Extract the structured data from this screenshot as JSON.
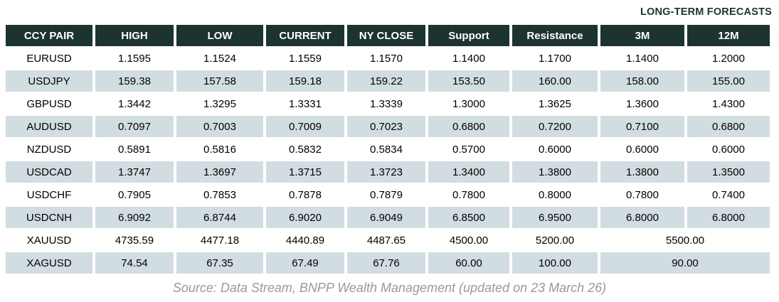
{
  "forecast_banner": {
    "label": "LONG-TERM FORECASTS"
  },
  "table": {
    "columns": [
      {
        "key": "pair",
        "label": "CCY PAIR"
      },
      {
        "key": "high",
        "label": "HIGH"
      },
      {
        "key": "low",
        "label": "LOW"
      },
      {
        "key": "current",
        "label": "CURRENT"
      },
      {
        "key": "ny_close",
        "label": "NY CLOSE"
      },
      {
        "key": "support",
        "label": "Support"
      },
      {
        "key": "resistance",
        "label": "Resistance"
      },
      {
        "key": "m3",
        "label": "3M"
      },
      {
        "key": "m12",
        "label": "12M"
      }
    ],
    "rows": [
      {
        "pair": "EURUSD",
        "high": "1.1595",
        "low": "1.1524",
        "current": "1.1559",
        "ny_close": "1.1570",
        "support": "1.1400",
        "resistance": "1.1700",
        "m3": "1.1400",
        "m12": "1.2000"
      },
      {
        "pair": "USDJPY",
        "high": "159.38",
        "low": "157.58",
        "current": "159.18",
        "ny_close": "159.22",
        "support": "153.50",
        "resistance": "160.00",
        "m3": "158.00",
        "m12": "155.00"
      },
      {
        "pair": "GBPUSD",
        "high": "1.3442",
        "low": "1.3295",
        "current": "1.3331",
        "ny_close": "1.3339",
        "support": "1.3000",
        "resistance": "1.3625",
        "m3": "1.3600",
        "m12": "1.4300"
      },
      {
        "pair": "AUDUSD",
        "high": "0.7097",
        "low": "0.7003",
        "current": "0.7009",
        "ny_close": "0.7023",
        "support": "0.6800",
        "resistance": "0.7200",
        "m3": "0.7100",
        "m12": "0.6800"
      },
      {
        "pair": "NZDUSD",
        "high": "0.5891",
        "low": "0.5816",
        "current": "0.5832",
        "ny_close": "0.5834",
        "support": "0.5700",
        "resistance": "0.6000",
        "m3": "0.6000",
        "m12": "0.6000"
      },
      {
        "pair": "USDCAD",
        "high": "1.3747",
        "low": "1.3697",
        "current": "1.3715",
        "ny_close": "1.3723",
        "support": "1.3400",
        "resistance": "1.3800",
        "m3": "1.3800",
        "m12": "1.3500"
      },
      {
        "pair": "USDCHF",
        "high": "0.7905",
        "low": "0.7853",
        "current": "0.7878",
        "ny_close": "0.7879",
        "support": "0.7800",
        "resistance": "0.8000",
        "m3": "0.7800",
        "m12": "0.7400"
      },
      {
        "pair": "USDCNH",
        "high": "6.9092",
        "low": "6.8744",
        "current": "6.9020",
        "ny_close": "6.9049",
        "support": "6.8500",
        "resistance": "6.9500",
        "m3": "6.8000",
        "m12": "6.8000"
      },
      {
        "pair": "XAUUSD",
        "high": "4735.59",
        "low": "4477.18",
        "current": "4440.89",
        "ny_close": "4487.65",
        "support": "4500.00",
        "resistance": "5200.00",
        "long_term": "5500.00"
      },
      {
        "pair": "XAGUSD",
        "high": "74.54",
        "low": "67.35",
        "current": "67.49",
        "ny_close": "67.76",
        "support": "60.00",
        "resistance": "100.00",
        "long_term": "90.00"
      }
    ]
  },
  "source_note": "Source: Data Stream, BNPP Wealth Management (updated on 23 March 26)",
  "colors": {
    "header_bg": "#1d3330",
    "header_text": "#ffffff",
    "row_alt_bg": "#d2dde2",
    "body_text": "#000000",
    "forecast_label_text": "#1d3330",
    "source_text": "#999999"
  }
}
